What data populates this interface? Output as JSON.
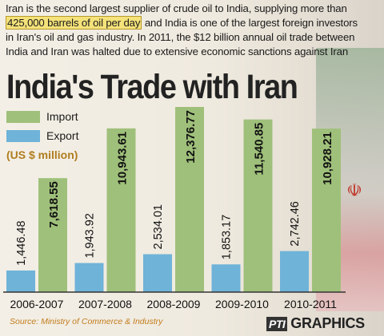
{
  "intro": {
    "line1": "Iran is the second largest supplier of crude oil to India, supplying more than",
    "highlight": "425,000 barrels of oil per day",
    "line2_rest": " and India is one of the largest foreign investors",
    "line3": "in Iran's oil and gas industry. In 2011, the $12 billion annual oil trade between",
    "line4": "India and Iran was halted due to extensive economic sanctions against Iran"
  },
  "title": "India's Trade with Iran",
  "legend": {
    "import_label": "Import",
    "export_label": "Export",
    "units": "(US $ million)"
  },
  "colors": {
    "import": "#9fc07a",
    "export": "#6fb3d8",
    "axis": "#333333"
  },
  "source": "Source: Ministry of Commerce & Industry",
  "credit": {
    "logo": "PTI",
    "text": "GRAPHICS"
  },
  "chart_data": {
    "type": "bar",
    "title": "India's Trade with Iran",
    "ylabel": "(US $ million)",
    "categories": [
      "2006-2007",
      "2007-2008",
      "2008-2009",
      "2009-2010",
      "2010-2011"
    ],
    "series": [
      {
        "name": "Export",
        "values": [
          1446.48,
          1943.92,
          2534.01,
          1853.17,
          2742.46
        ],
        "labels": [
          "1,446.48",
          "1,943.92",
          "2,534.01",
          "1,853.17",
          "2,742.46"
        ]
      },
      {
        "name": "Import",
        "values": [
          7618.55,
          10943.61,
          12376.77,
          11540.85,
          10928.21
        ],
        "labels": [
          "7,618.55",
          "10,943.61",
          "12,376.77",
          "11,540.85",
          "10,928.21"
        ]
      }
    ],
    "ylim": [
      0,
      12376.77
    ],
    "grid": false,
    "legend": "top-left"
  }
}
